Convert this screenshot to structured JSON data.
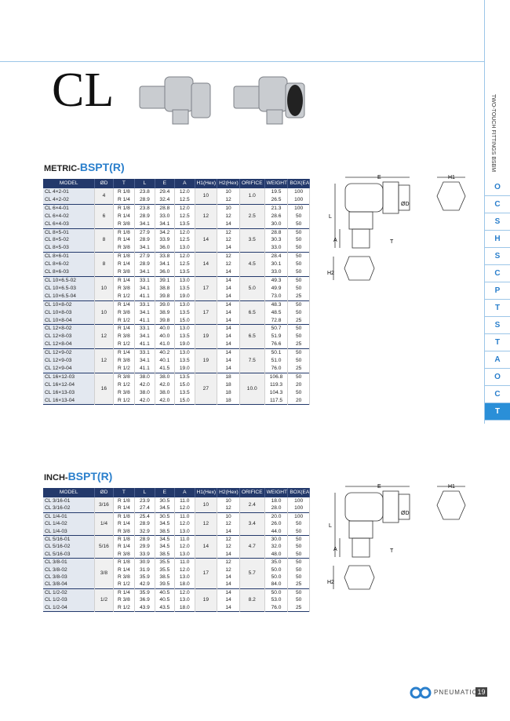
{
  "title": "CL",
  "side_label": "TWO-TOUCH FITTINGS BSBM",
  "side_tabs": [
    "O",
    "C",
    "S",
    "H",
    "S",
    "C",
    "P",
    "T",
    "S",
    "T",
    "A",
    "O",
    "C",
    "T"
  ],
  "diagram_labels": [
    "E",
    "H1",
    "L",
    "A",
    "ØD",
    "T",
    "H2"
  ],
  "headers": [
    "MODEL",
    "ØD",
    "T",
    "L",
    "E",
    "A",
    "H1(Hex)",
    "H2(Hex)",
    "ORIFICE",
    "WEIGHT(g)",
    "BOX(EA)"
  ],
  "metric": {
    "prefix": "METRIC-",
    "suffix": "BSPT(R)",
    "groups": [
      {
        "od": "4",
        "h1": "10",
        "orifice": "1.0",
        "rows": [
          [
            "CL 4×2-01",
            "R 1/8",
            "23.8",
            "29.4",
            "12.0",
            "10",
            "19.5",
            "100"
          ],
          [
            "CL 4×2-02",
            "R 1/4",
            "28.9",
            "32.4",
            "12.5",
            "12",
            "26.5",
            "100"
          ]
        ]
      },
      {
        "od": "6",
        "h1": "12",
        "orifice": "2.5",
        "rows": [
          [
            "CL 6×4-01",
            "R 1/8",
            "23.8",
            "28.8",
            "12.0",
            "10",
            "21.3",
            "100"
          ],
          [
            "CL 6×4-02",
            "R 1/4",
            "28.9",
            "33.0",
            "12.5",
            "12",
            "28.6",
            "50"
          ],
          [
            "CL 6×4-03",
            "R 3/8",
            "34.1",
            "34.1",
            "13.5",
            "14",
            "30.0",
            "50"
          ]
        ]
      },
      {
        "od": "8",
        "h1": "14",
        "orifice": "3.5",
        "rows": [
          [
            "CL 8×5-01",
            "R 1/8",
            "27.9",
            "34.2",
            "12.0",
            "12",
            "28.8",
            "50"
          ],
          [
            "CL 8×5-02",
            "R 1/4",
            "28.9",
            "33.9",
            "12.5",
            "12",
            "30.3",
            "50"
          ],
          [
            "CL 8×5-03",
            "R 3/8",
            "34.1",
            "36.0",
            "13.0",
            "14",
            "33.0",
            "50"
          ]
        ]
      },
      {
        "od": "8",
        "h1": "14",
        "orifice": "4.5",
        "rows": [
          [
            "CL 8×6-01",
            "R 1/8",
            "27.9",
            "33.8",
            "12.0",
            "12",
            "28.4",
            "50"
          ],
          [
            "CL 8×6-02",
            "R 1/4",
            "28.9",
            "34.1",
            "12.5",
            "12",
            "30.1",
            "50"
          ],
          [
            "CL 8×6-03",
            "R 3/8",
            "34.1",
            "36.0",
            "13.5",
            "14",
            "33.0",
            "50"
          ]
        ]
      },
      {
        "od": "10",
        "h1": "17",
        "orifice": "5.0",
        "rows": [
          [
            "CL 10×6.5-02",
            "R 1/4",
            "33.1",
            "39.1",
            "13.0",
            "14",
            "49.3",
            "50"
          ],
          [
            "CL 10×6.5-03",
            "R 3/8",
            "34.1",
            "38.8",
            "13.5",
            "14",
            "49.9",
            "50"
          ],
          [
            "CL 10×6.5-04",
            "R 1/2",
            "41.1",
            "39.8",
            "19.0",
            "14",
            "73.0",
            "25"
          ]
        ]
      },
      {
        "od": "10",
        "h1": "17",
        "orifice": "6.5",
        "rows": [
          [
            "CL 10×8-02",
            "R 1/4",
            "33.1",
            "39.0",
            "13.0",
            "14",
            "48.3",
            "50"
          ],
          [
            "CL 10×8-03",
            "R 3/8",
            "34.1",
            "38.9",
            "13.5",
            "14",
            "48.5",
            "50"
          ],
          [
            "CL 10×8-04",
            "R 1/2",
            "41.1",
            "39.8",
            "15.0",
            "14",
            "72.8",
            "25"
          ]
        ]
      },
      {
        "od": "12",
        "h1": "19",
        "orifice": "6.5",
        "rows": [
          [
            "CL 12×8-02",
            "R 1/4",
            "33.1",
            "40.0",
            "13.0",
            "14",
            "50.7",
            "50"
          ],
          [
            "CL 12×8-03",
            "R 3/8",
            "34.1",
            "40.0",
            "13.5",
            "14",
            "51.9",
            "50"
          ],
          [
            "CL 12×8-04",
            "R 1/2",
            "41.1",
            "41.0",
            "19.0",
            "14",
            "76.6",
            "25"
          ]
        ]
      },
      {
        "od": "12",
        "h1": "19",
        "orifice": "7.5",
        "rows": [
          [
            "CL 12×9-02",
            "R 1/4",
            "33.1",
            "40.2",
            "13.0",
            "14",
            "50.1",
            "50"
          ],
          [
            "CL 12×9-03",
            "R 3/8",
            "34.1",
            "40.1",
            "13.5",
            "14",
            "51.0",
            "50"
          ],
          [
            "CL 12×9-04",
            "R 1/2",
            "41.1",
            "41.5",
            "19.0",
            "14",
            "76.0",
            "25"
          ]
        ]
      },
      {
        "od": "16",
        "h1": "27",
        "orifice": "10.0",
        "rows": [
          [
            "CL 16×12-03",
            "R 3/8",
            "38.0",
            "38.0",
            "13.5",
            "18",
            "106.8",
            "50"
          ],
          [
            "CL 16×12-04",
            "R 1/2",
            "42.0",
            "42.0",
            "15.0",
            "18",
            "119.3",
            "20"
          ],
          [
            "CL 16×13-03",
            "R 3/8",
            "38.0",
            "38.0",
            "13.5",
            "18",
            "104.3",
            "50"
          ],
          [
            "CL 16×13-04",
            "R 1/2",
            "42.0",
            "42.0",
            "15.0",
            "18",
            "117.5",
            "20"
          ]
        ]
      }
    ]
  },
  "inch": {
    "prefix": "INCH-",
    "suffix": "BSPT(R)",
    "groups": [
      {
        "od": "3/16",
        "h1": "10",
        "orifice": "2.4",
        "rows": [
          [
            "CL 3/16-01",
            "R 1/8",
            "23.9",
            "30.5",
            "11.0",
            "10",
            "18.0",
            "100"
          ],
          [
            "CL 3/16-02",
            "R 1/4",
            "27.4",
            "34.5",
            "12.0",
            "12",
            "28.0",
            "100"
          ]
        ]
      },
      {
        "od": "1/4",
        "h1": "12",
        "orifice": "3.4",
        "rows": [
          [
            "CL 1/4-01",
            "R 1/8",
            "25.4",
            "30.5",
            "11.0",
            "10",
            "20.0",
            "100"
          ],
          [
            "CL 1/4-02",
            "R 1/4",
            "28.9",
            "34.5",
            "12.0",
            "12",
            "26.0",
            "50"
          ],
          [
            "CL 1/4-03",
            "R 3/8",
            "32.9",
            "38.5",
            "13.0",
            "14",
            "44.0",
            "50"
          ]
        ]
      },
      {
        "od": "5/16",
        "h1": "14",
        "orifice": "4.7",
        "rows": [
          [
            "CL 5/16-01",
            "R 1/8",
            "28.9",
            "34.5",
            "11.0",
            "12",
            "30.0",
            "50"
          ],
          [
            "CL 5/16-02",
            "R 1/4",
            "29.9",
            "34.5",
            "12.0",
            "12",
            "32.0",
            "50"
          ],
          [
            "CL 5/16-03",
            "R 3/8",
            "33.9",
            "38.5",
            "13.0",
            "14",
            "48.0",
            "50"
          ]
        ]
      },
      {
        "od": "3/8",
        "h1": "17",
        "orifice": "5.7",
        "rows": [
          [
            "CL 3/8-01",
            "R 1/8",
            "30.9",
            "35.5",
            "11.0",
            "12",
            "35.0",
            "50"
          ],
          [
            "CL 3/8-02",
            "R 1/4",
            "31.9",
            "35.5",
            "12.0",
            "12",
            "50.0",
            "50"
          ],
          [
            "CL 3/8-03",
            "R 3/8",
            "35.9",
            "38.5",
            "13.0",
            "14",
            "50.0",
            "50"
          ],
          [
            "CL 3/8-04",
            "R 1/2",
            "42.9",
            "39.5",
            "18.0",
            "14",
            "84.0",
            "25"
          ]
        ]
      },
      {
        "od": "1/2",
        "h1": "19",
        "orifice": "8.2",
        "rows": [
          [
            "CL 1/2-02",
            "R 1/4",
            "35.9",
            "40.5",
            "12.0",
            "14",
            "50.0",
            "50"
          ],
          [
            "CL 1/2-03",
            "R 3/8",
            "36.9",
            "40.5",
            "13.0",
            "14",
            "53.0",
            "50"
          ],
          [
            "CL 1/2-04",
            "R 1/2",
            "43.9",
            "43.5",
            "18.0",
            "14",
            "76.0",
            "25"
          ]
        ]
      }
    ]
  },
  "footer": {
    "brand": "PNEUMATICS",
    "page": "19"
  }
}
